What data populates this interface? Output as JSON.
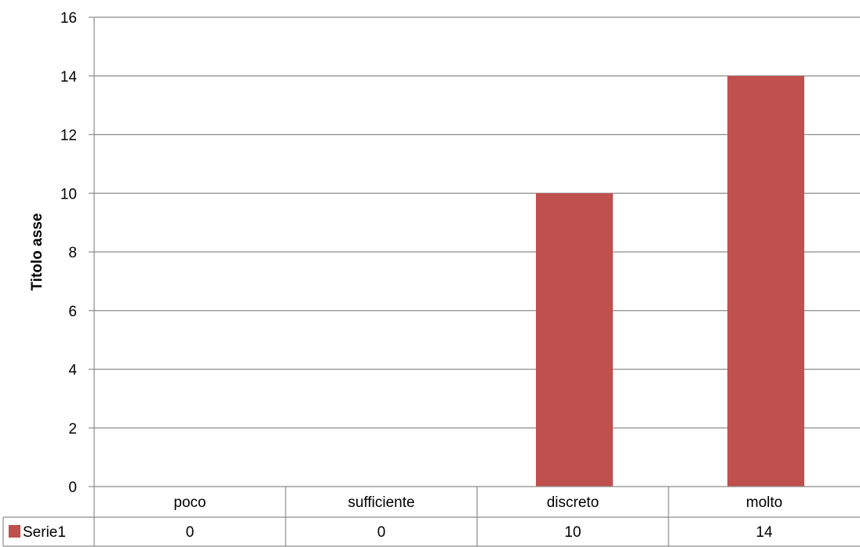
{
  "chart_data": {
    "type": "bar",
    "categories": [
      "poco",
      "sufficiente",
      "discreto",
      "molto"
    ],
    "series": [
      {
        "name": "Serie1",
        "values": [
          0,
          0,
          10,
          14
        ],
        "color": "#c0504d"
      }
    ],
    "title": "",
    "xlabel": "",
    "ylabel": "Titolo asse",
    "ylim": [
      0,
      16
    ],
    "yticks": [
      0,
      2,
      4,
      6,
      8,
      10,
      12,
      14,
      16
    ],
    "grid": true,
    "data_table": true,
    "data_table_values": [
      "0",
      "0",
      "10",
      "14"
    ]
  }
}
